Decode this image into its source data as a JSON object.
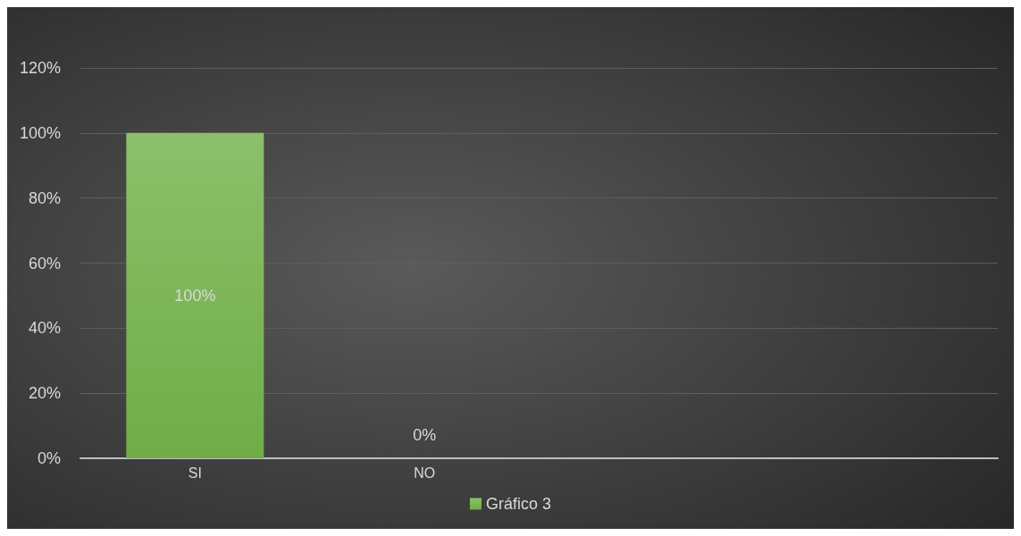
{
  "chart_data": {
    "type": "bar",
    "categories": [
      "SI",
      "NO",
      null,
      null
    ],
    "series": [
      {
        "name": "Gráfico 3",
        "color": "#70ad47",
        "values": [
          100,
          0,
          null,
          null
        ]
      }
    ],
    "value_labels": [
      "100%",
      "0%",
      null,
      null
    ],
    "ylim": [
      0,
      120
    ],
    "yticks": [
      {
        "value": 0,
        "label": "0%"
      },
      {
        "value": 20,
        "label": "20%"
      },
      {
        "value": 40,
        "label": "40%"
      },
      {
        "value": 60,
        "label": "60%"
      },
      {
        "value": 80,
        "label": "80%"
      },
      {
        "value": 100,
        "label": "100%"
      },
      {
        "value": 120,
        "label": "120%"
      }
    ],
    "grid": "y",
    "legend": "bottom"
  }
}
